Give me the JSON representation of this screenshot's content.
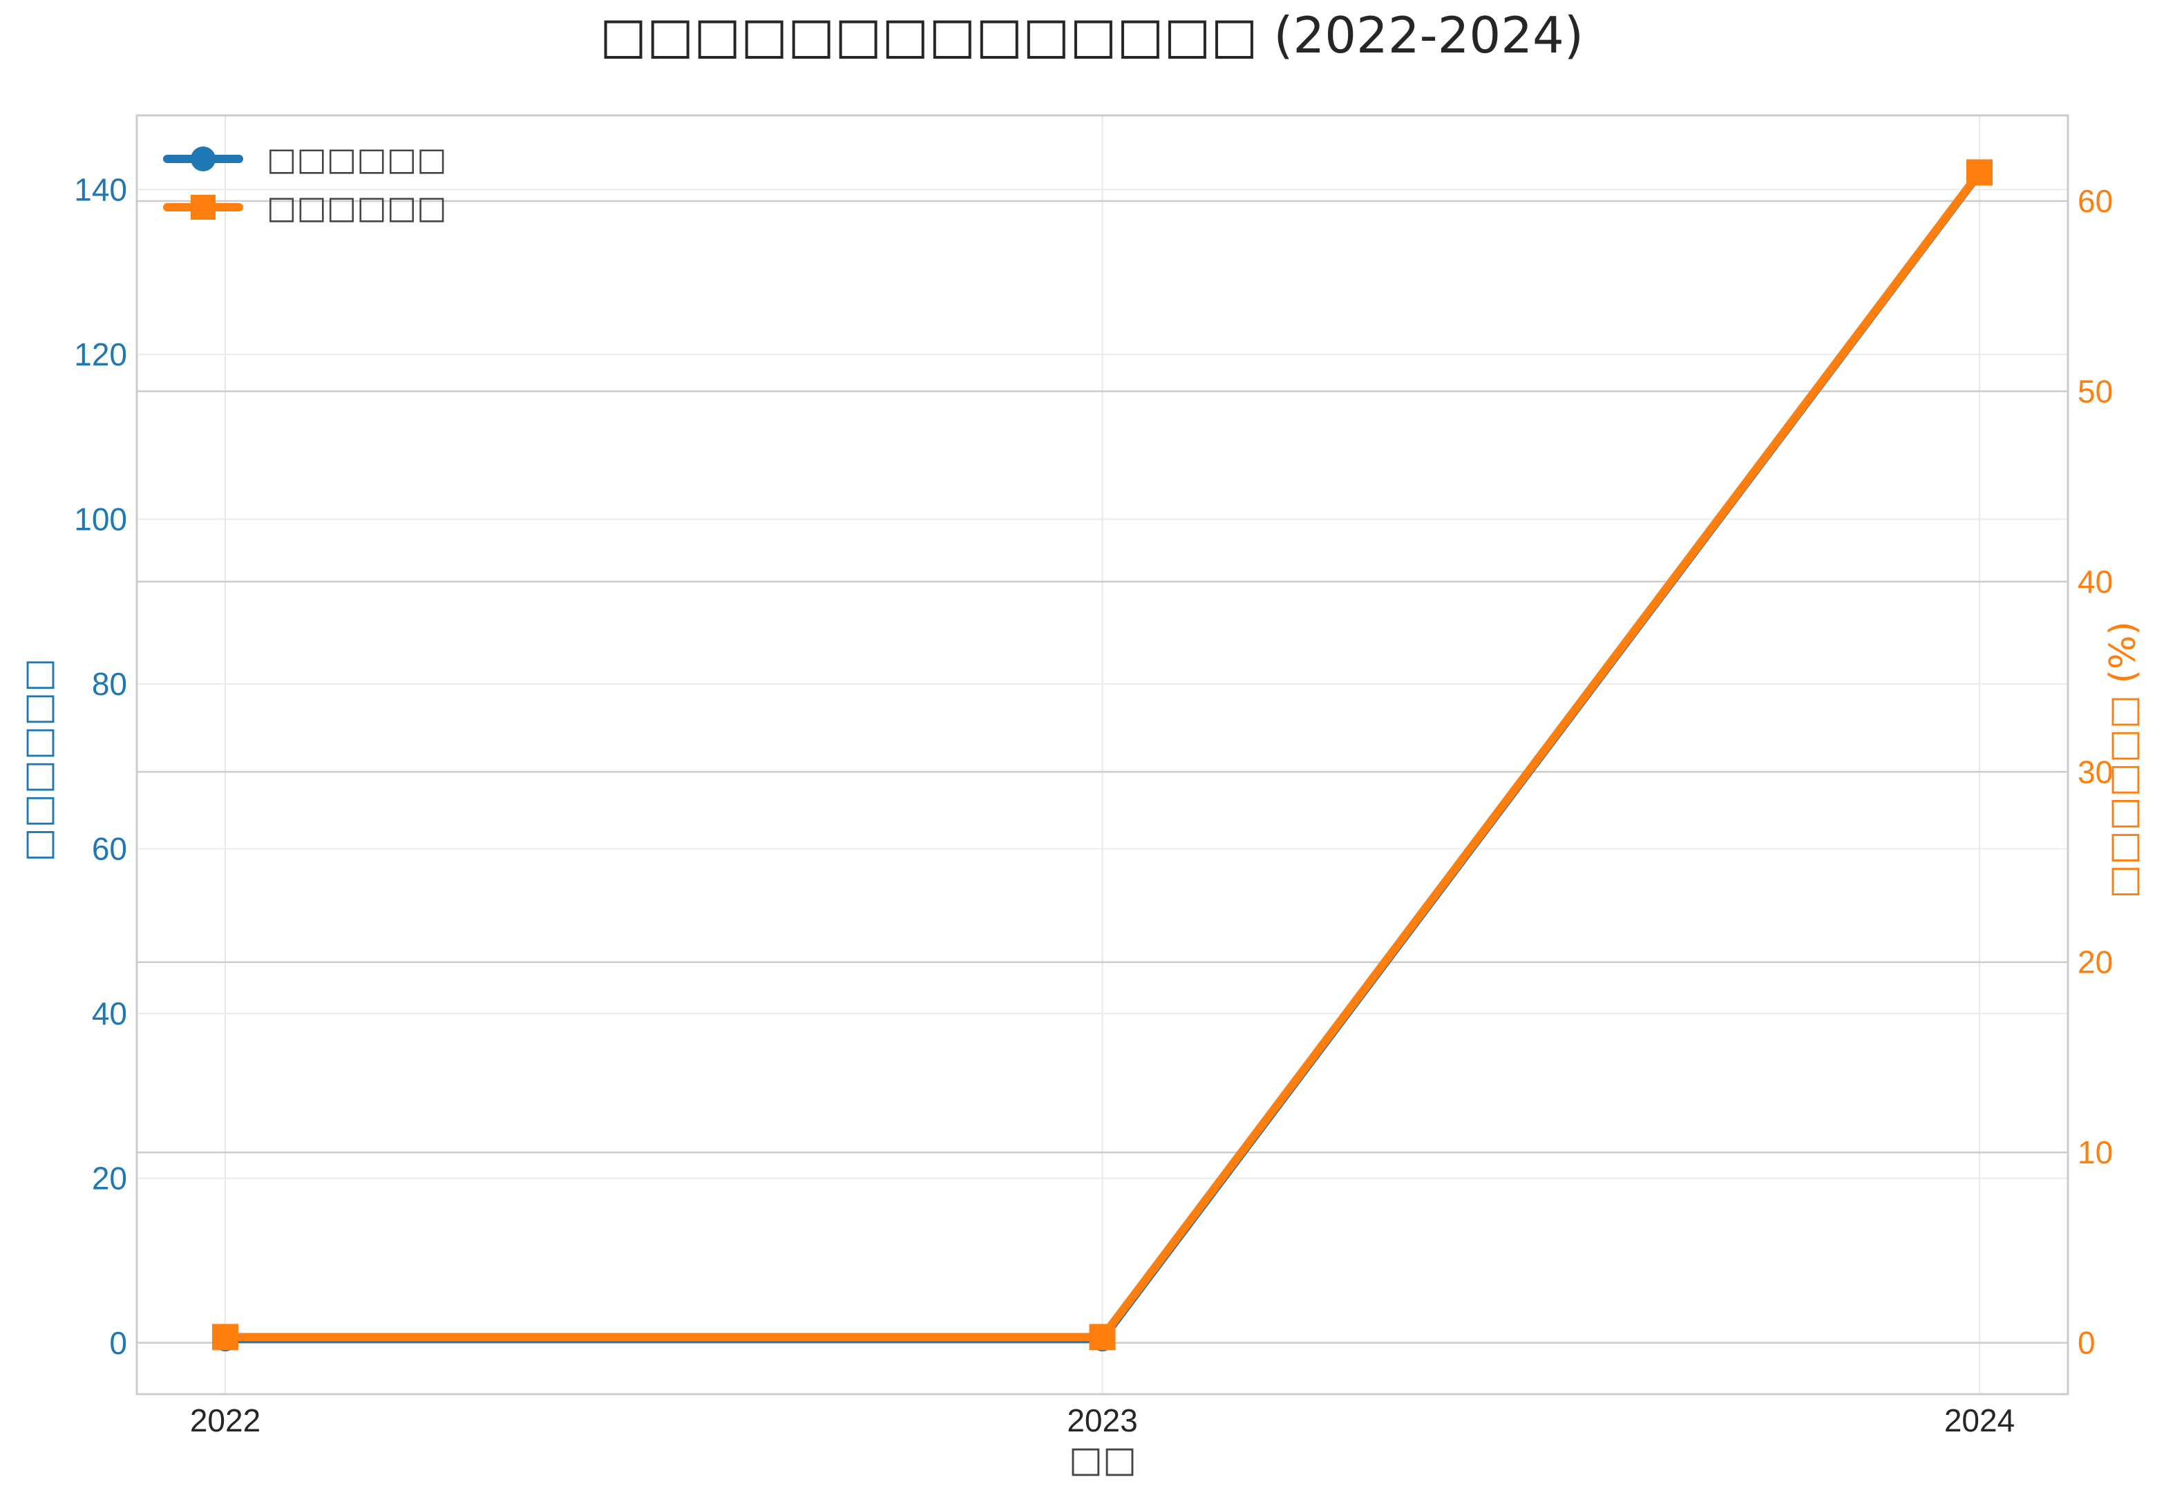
{
  "chart_data": {
    "type": "line",
    "title": "□□□□□□□□□□□□□□ (2022-2024)",
    "xlabel": "□□",
    "categories": [
      "2022",
      "2023",
      "2024"
    ],
    "y_left": {
      "label": "□□□□□□",
      "lim": [
        -6.2,
        149
      ],
      "ticks": [
        0,
        20,
        40,
        60,
        80,
        100,
        120,
        140
      ],
      "color": "#1f77b4"
    },
    "y_right": {
      "label": "□□□□□□ (%)",
      "lim": [
        -2.7,
        64.5
      ],
      "ticks": [
        0,
        10,
        20,
        30,
        40,
        50,
        60
      ],
      "color": "#ff7f0e"
    },
    "series": [
      {
        "name": "□□□□□□",
        "axis": "left",
        "marker": "circle",
        "color": "#1f77b4",
        "values": [
          0.5,
          0.5,
          142
        ]
      },
      {
        "name": "□□□□□□",
        "axis": "right",
        "marker": "square",
        "color": "#ff7f0e",
        "values": [
          0.3,
          0.3,
          61.5
        ]
      }
    ],
    "grid": true,
    "legend_position": "top-left"
  }
}
